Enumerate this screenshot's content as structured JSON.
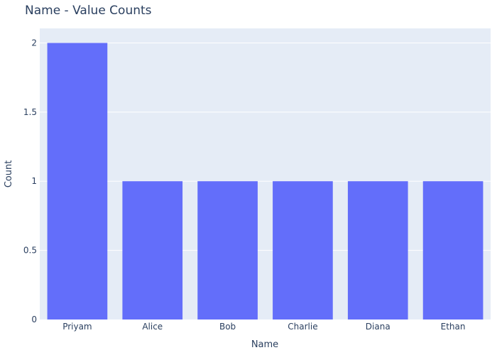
{
  "chart_data": {
    "type": "bar",
    "title": "Name - Value Counts",
    "xlabel": "Name",
    "ylabel": "Count",
    "categories": [
      "Priyam",
      "Alice",
      "Bob",
      "Charlie",
      "Diana",
      "Ethan"
    ],
    "values": [
      2,
      1,
      1,
      1,
      1,
      1
    ],
    "ylim": [
      0,
      2.105
    ],
    "yticks": [
      0,
      0.5,
      1,
      1.5,
      2
    ],
    "ytick_labels": [
      "0",
      "0.5",
      "1",
      "1.5",
      "2"
    ],
    "grid": true,
    "colors": {
      "bar": "#636efa",
      "plot_bg": "#e5ecf6",
      "grid": "#ffffff",
      "text": "#2a3f5f"
    }
  }
}
